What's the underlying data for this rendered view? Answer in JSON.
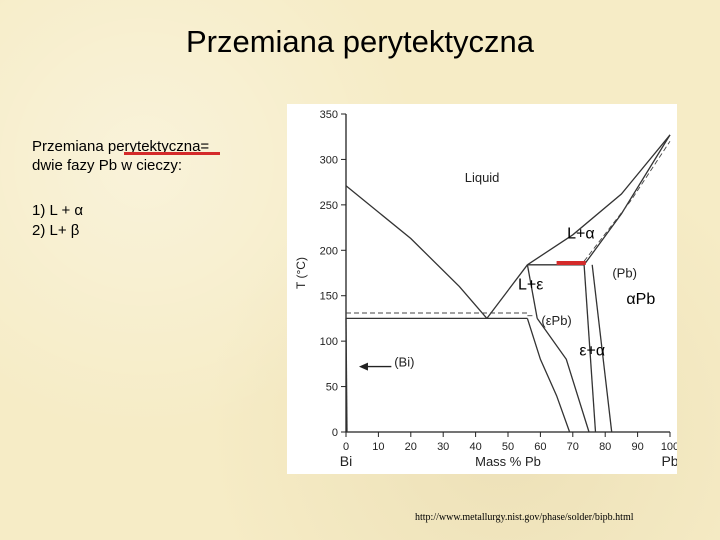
{
  "slide": {
    "title": "Przemiana perytektyczna",
    "intro_line1": "Przemiana perytektyczna=",
    "intro_line2": "dwie fazy Pb w cieczy:",
    "list": [
      "1)  L + α",
      "2)   L+ β"
    ],
    "source_url": "http://www.metallurgy.nist.gov/phase/solder/bipb.html"
  },
  "chart_data": {
    "type": "phase-diagram",
    "system": "Bi-Pb",
    "ylabel": "T (°C)",
    "xlabel": "Mass % Pb",
    "x_end_labels": [
      "Bi",
      "Pb"
    ],
    "xlim": [
      0,
      100
    ],
    "ylim": [
      0,
      350
    ],
    "x_ticks": [
      0,
      10,
      20,
      30,
      40,
      50,
      60,
      70,
      80,
      90,
      100
    ],
    "y_ticks": [
      0,
      50,
      100,
      150,
      200,
      250,
      300,
      350
    ],
    "lines": [
      {
        "name": "liquidus-bi",
        "points": [
          [
            0,
            271
          ],
          [
            20,
            213
          ],
          [
            35,
            160
          ],
          [
            43.5,
            125
          ]
        ]
      },
      {
        "name": "liquidus-pb",
        "points": [
          [
            56,
            184
          ],
          [
            70,
            217
          ],
          [
            85,
            262
          ],
          [
            100,
            327
          ]
        ]
      },
      {
        "name": "liquidus-eps",
        "points": [
          [
            43.5,
            125
          ],
          [
            56,
            184
          ]
        ]
      },
      {
        "name": "eutectic-line",
        "points": [
          [
            0,
            125
          ],
          [
            56,
            125
          ]
        ]
      },
      {
        "name": "eutectic-dash",
        "points": [
          [
            0,
            131
          ],
          [
            56,
            131
          ]
        ]
      },
      {
        "name": "peritectic-line",
        "points": [
          [
            56,
            184
          ],
          [
            73.5,
            184
          ]
        ]
      },
      {
        "name": "solidus-pb",
        "points": [
          [
            73.5,
            184
          ],
          [
            85,
            240
          ],
          [
            100,
            327
          ]
        ]
      },
      {
        "name": "solidus-pb-dash",
        "points": [
          [
            73.5,
            188
          ],
          [
            88,
            255
          ],
          [
            100,
            320
          ]
        ]
      },
      {
        "name": "eps-left-solvus",
        "points": [
          [
            56,
            125
          ],
          [
            60,
            80
          ],
          [
            65,
            40
          ],
          [
            69,
            0
          ]
        ]
      },
      {
        "name": "eps-right-1",
        "points": [
          [
            56,
            184
          ],
          [
            59,
            125
          ]
        ]
      },
      {
        "name": "eps-right-2",
        "points": [
          [
            59,
            125
          ],
          [
            68,
            80
          ],
          [
            75,
            0
          ]
        ]
      },
      {
        "name": "pb-solvus-1",
        "points": [
          [
            73.5,
            184
          ],
          [
            77,
            0
          ]
        ]
      },
      {
        "name": "pb-solvus-2",
        "points": [
          [
            76,
            184
          ],
          [
            82,
            0
          ]
        ]
      },
      {
        "name": "bi-solvus",
        "points": [
          [
            0,
            125
          ],
          [
            0.3,
            0
          ]
        ]
      },
      {
        "name": "eps-dash",
        "points": [
          [
            56,
            128
          ],
          [
            58,
            128
          ]
        ]
      }
    ],
    "labels": [
      {
        "text": "Liquid",
        "x": 42,
        "y": 275
      },
      {
        "text": "(Pb)",
        "x": 86,
        "y": 170
      },
      {
        "text": "(εPb)",
        "x": 65,
        "y": 118
      },
      {
        "text": "(Bi)",
        "x": 18,
        "y": 72
      }
    ],
    "bi_arrow": {
      "from_x": 14,
      "to_x": 4,
      "y": 72
    },
    "slide_annotations": [
      {
        "text": "L+α",
        "x": 72.5,
        "y": 213
      },
      {
        "text": "L+ε",
        "x": 57,
        "y": 157
      },
      {
        "text": "αPb",
        "x": 91,
        "y": 141
      },
      {
        "text": "ε+α",
        "x": 76,
        "y": 84
      }
    ],
    "highlight": {
      "x": [
        65,
        74
      ],
      "y": 186,
      "color": "#d42a2a"
    }
  }
}
